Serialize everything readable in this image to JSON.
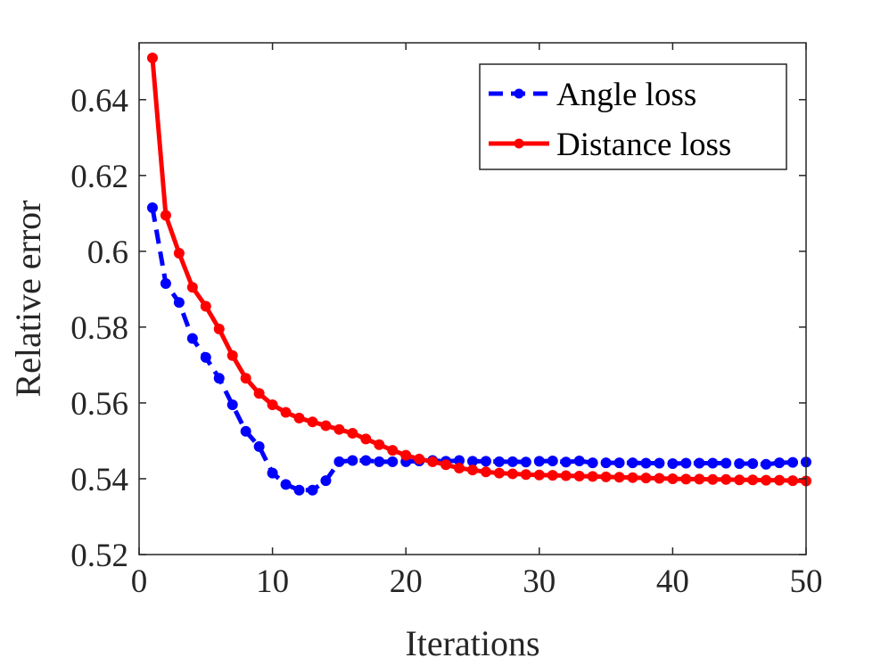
{
  "chart_data": {
    "type": "line",
    "xlabel": "Iterations",
    "ylabel": "Relative error",
    "xlim": [
      0,
      50
    ],
    "ylim": [
      0.52,
      0.655
    ],
    "xticks": [
      0,
      10,
      20,
      30,
      40,
      50
    ],
    "xtick_labels": [
      "0",
      "10",
      "20",
      "30",
      "40",
      "50"
    ],
    "yticks": [
      0.52,
      0.54,
      0.56,
      0.58,
      0.6,
      0.62,
      0.64
    ],
    "ytick_labels": [
      "0.52",
      "0.54",
      "0.56",
      "0.58",
      "0.6",
      "0.62",
      "0.64"
    ],
    "grid": false,
    "legend_position": "top-right",
    "x": [
      1,
      2,
      3,
      4,
      5,
      6,
      7,
      8,
      9,
      10,
      11,
      12,
      13,
      14,
      15,
      16,
      17,
      18,
      19,
      20,
      21,
      22,
      23,
      24,
      25,
      26,
      27,
      28,
      29,
      30,
      31,
      32,
      33,
      34,
      35,
      36,
      37,
      38,
      39,
      40,
      41,
      42,
      43,
      44,
      45,
      46,
      47,
      48,
      49,
      50
    ],
    "series": [
      {
        "name": "Angle loss",
        "color": "#0000ff",
        "line_style": "dashed",
        "values": [
          0.6115,
          0.5915,
          0.5865,
          0.577,
          0.572,
          0.5665,
          0.5595,
          0.5525,
          0.5485,
          0.5415,
          0.5385,
          0.537,
          0.537,
          0.5395,
          0.5445,
          0.5448,
          0.5448,
          0.5445,
          0.5445,
          0.5445,
          0.5447,
          0.5448,
          0.5446,
          0.5448,
          0.5446,
          0.5446,
          0.5445,
          0.5445,
          0.5444,
          0.5446,
          0.5447,
          0.5444,
          0.5447,
          0.5442,
          0.5442,
          0.5442,
          0.5442,
          0.5441,
          0.5441,
          0.544,
          0.5441,
          0.5441,
          0.5441,
          0.5441,
          0.544,
          0.544,
          0.5438,
          0.5442,
          0.5443,
          0.5444
        ]
      },
      {
        "name": "Distance loss",
        "color": "#ff0000",
        "line_style": "solid",
        "values": [
          0.651,
          0.6095,
          0.5995,
          0.5905,
          0.5855,
          0.5795,
          0.5725,
          0.5665,
          0.5625,
          0.5595,
          0.5575,
          0.556,
          0.555,
          0.554,
          0.553,
          0.552,
          0.5505,
          0.549,
          0.5475,
          0.5462,
          0.5452,
          0.5445,
          0.5437,
          0.5428,
          0.5423,
          0.5418,
          0.5415,
          0.5413,
          0.5411,
          0.541,
          0.5409,
          0.5408,
          0.5407,
          0.5406,
          0.5405,
          0.5404,
          0.5403,
          0.5402,
          0.5401,
          0.54,
          0.5399,
          0.5399,
          0.5398,
          0.5398,
          0.5397,
          0.5397,
          0.5396,
          0.5396,
          0.5395,
          0.5394
        ]
      }
    ]
  }
}
